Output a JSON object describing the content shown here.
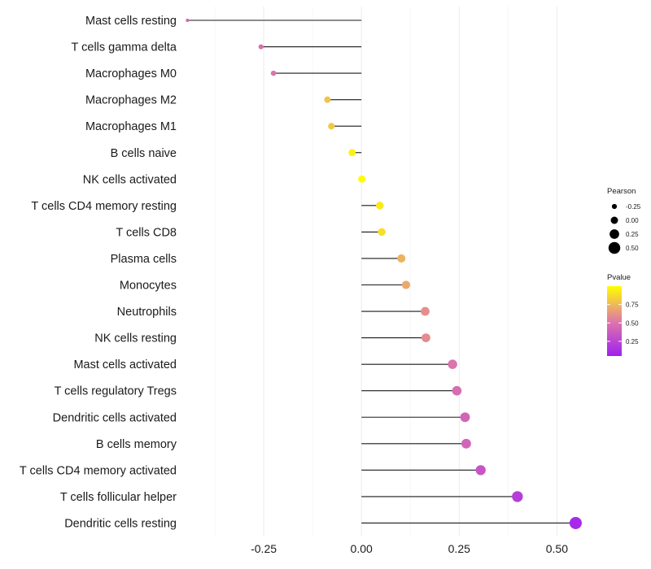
{
  "chart_data": {
    "type": "lollipop",
    "title": "",
    "xlabel": "",
    "ylabel": "",
    "xlim": [
      -0.45,
      0.57
    ],
    "xticks": [
      -0.25,
      0.0,
      0.25,
      0.5
    ],
    "xtick_labels": [
      "-0.25",
      "0.00",
      "0.25",
      "0.50"
    ],
    "categories": [
      "Mast cells resting",
      "T cells gamma delta",
      "Macrophages M0",
      "Macrophages M2",
      "Macrophages M1",
      "B cells naive",
      "NK cells activated",
      "T cells CD4 memory resting",
      "T cells CD8",
      "Plasma cells",
      "Monocytes",
      "Neutrophils",
      "NK cells resting",
      "Mast cells activated",
      "T cells regulatory  Tregs ",
      "Dendritic cells activated",
      "B cells memory",
      "T cells CD4 memory activated",
      "T cells follicular helper",
      "Dendritic cells resting"
    ],
    "pearson": [
      -0.445,
      -0.257,
      -0.225,
      -0.087,
      -0.077,
      -0.024,
      0.001,
      0.047,
      0.052,
      0.102,
      0.114,
      0.163,
      0.165,
      0.233,
      0.244,
      0.265,
      0.268,
      0.305,
      0.399,
      0.548
    ],
    "pvalue": [
      0.4,
      0.45,
      0.47,
      0.78,
      0.8,
      0.95,
      0.99,
      0.92,
      0.88,
      0.72,
      0.68,
      0.58,
      0.57,
      0.47,
      0.44,
      0.4,
      0.39,
      0.3,
      0.17,
      0.05
    ],
    "legend_size": {
      "title": "Pearson",
      "labels": [
        "-0.25",
        "0.00",
        "0.25",
        "0.50"
      ]
    },
    "legend_color": {
      "title": "Pvalue",
      "labels": [
        "0.75",
        "0.50",
        "0.25"
      ],
      "low_color": "#a020f0",
      "high_color": "#ffff00"
    },
    "legend_position": "right"
  }
}
